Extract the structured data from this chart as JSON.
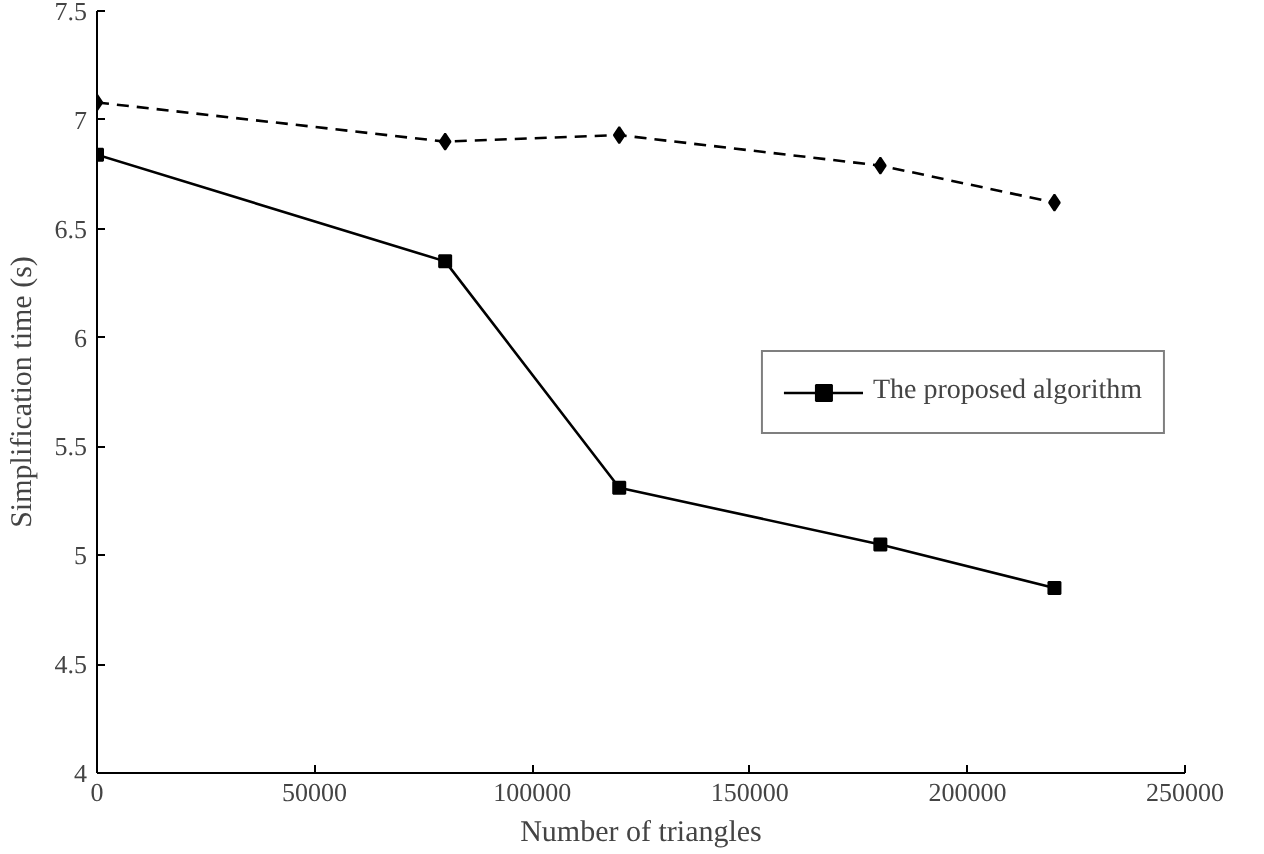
{
  "chart_data": {
    "type": "line",
    "xlabel": "Number of triangles",
    "ylabel": "Simplification time (s)",
    "x": [
      0,
      80000,
      120000,
      180000,
      220000
    ],
    "series": [
      {
        "color": "#000000",
        "values": [
          7.08,
          6.9,
          6.93,
          6.79,
          6.62
        ],
        "line_style": "dashed",
        "marker": "diamond"
      },
      {
        "name": "The proposed algorithm",
        "color": "#000000",
        "values": [
          6.84,
          6.35,
          5.31,
          5.05,
          4.85
        ],
        "line_style": "solid",
        "marker": "square"
      }
    ],
    "xlim": [
      0,
      250000
    ],
    "xticks": [
      0,
      50000,
      100000,
      150000,
      200000,
      250000
    ],
    "ylim": [
      4,
      7.5
    ],
    "yticks": [
      4,
      {
        "value": 4.5,
        "label": "4.5"
      },
      5,
      {
        "value": 5.5,
        "label": "5.5"
      },
      6,
      {
        "value": 6.5,
        "label": "6.5"
      },
      7,
      {
        "value": 7.5,
        "label": "7.5"
      }
    ],
    "grid": false,
    "legend": "right"
  }
}
